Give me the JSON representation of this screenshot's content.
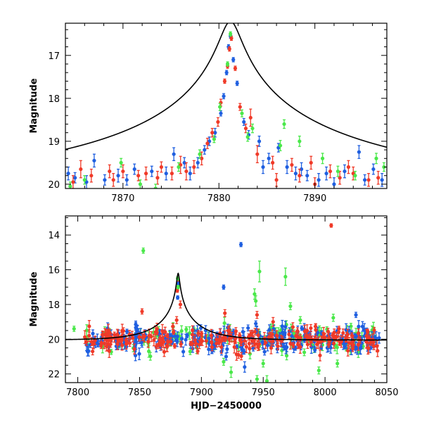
{
  "chart_data": [
    {
      "type": "scatter",
      "panel": "top",
      "xlabel": "",
      "ylabel": "Magnitude",
      "xlim": [
        7864,
        7897.5
      ],
      "ylim": [
        20.1,
        16.25
      ],
      "y_inverted": true,
      "x_ticks": [
        7870,
        7880,
        7890
      ],
      "y_ticks": [
        17,
        18,
        19,
        20
      ],
      "colors": {
        "red": "#f03a28",
        "blue": "#1f5fe0",
        "green": "#4ae84a",
        "model": "#000000"
      },
      "model_curve": {
        "baseline": 20.05,
        "peak": 16.5,
        "t0": 7881.2,
        "tE": 35.0,
        "u0": 0.029
      },
      "series": [
        {
          "color_key": "blue",
          "points": [
            [
              7864.3,
              19.75,
              0.15
            ],
            [
              7865.0,
              19.85,
              0.12
            ],
            [
              7866.2,
              19.95,
              0.15
            ],
            [
              7867.0,
              19.45,
              0.15
            ],
            [
              7868.1,
              19.9,
              0.12
            ],
            [
              7869.5,
              19.8,
              0.15
            ],
            [
              7870.4,
              19.9,
              0.12
            ],
            [
              7871.2,
              19.65,
              0.12
            ],
            [
              7873.0,
              19.7,
              0.12
            ],
            [
              7874.5,
              19.75,
              0.15
            ],
            [
              7875.3,
              19.3,
              0.15
            ],
            [
              7876.4,
              19.5,
              0.12
            ],
            [
              7877.0,
              19.75,
              0.15
            ],
            [
              7877.8,
              19.5,
              0.12
            ],
            [
              7878.5,
              19.2,
              0.1
            ],
            [
              7879.0,
              19.0,
              0.1
            ],
            [
              7879.6,
              18.8,
              0.1
            ],
            [
              7880.2,
              18.35,
              0.06
            ],
            [
              7880.5,
              17.95,
              0.06
            ],
            [
              7880.8,
              17.4,
              0.05
            ],
            [
              7881.0,
              16.8,
              0.05
            ],
            [
              7881.2,
              16.55,
              0.05
            ],
            [
              7881.5,
              17.1,
              0.05
            ],
            [
              7881.9,
              17.65,
              0.05
            ],
            [
              7882.6,
              18.55,
              0.08
            ],
            [
              7883.1,
              18.85,
              0.1
            ],
            [
              7884.2,
              19.0,
              0.12
            ],
            [
              7884.6,
              19.6,
              0.15
            ],
            [
              7885.2,
              19.4,
              0.12
            ],
            [
              7886.2,
              19.15,
              0.1
            ],
            [
              7887.1,
              19.6,
              0.15
            ],
            [
              7888.0,
              19.75,
              0.15
            ],
            [
              7888.6,
              19.65,
              0.15
            ],
            [
              7889.2,
              19.8,
              0.12
            ],
            [
              7890.4,
              19.9,
              0.15
            ],
            [
              7891.2,
              19.75,
              0.15
            ],
            [
              7892.0,
              20.0,
              0.15
            ],
            [
              7893.1,
              19.7,
              0.15
            ],
            [
              7894.6,
              19.25,
              0.15
            ],
            [
              7895.2,
              19.9,
              0.12
            ],
            [
              7896.1,
              19.65,
              0.12
            ],
            [
              7897.0,
              19.9,
              0.15
            ]
          ]
        },
        {
          "color_key": "red",
          "points": [
            [
              7864.8,
              19.95,
              0.15
            ],
            [
              7865.6,
              19.65,
              0.2
            ],
            [
              7866.7,
              19.8,
              0.15
            ],
            [
              7868.6,
              19.7,
              0.15
            ],
            [
              7869.0,
              19.9,
              0.15
            ],
            [
              7870.0,
              19.7,
              0.15
            ],
            [
              7871.6,
              19.8,
              0.12
            ],
            [
              7872.4,
              19.75,
              0.15
            ],
            [
              7873.6,
              19.85,
              0.15
            ],
            [
              7874.0,
              19.6,
              0.12
            ],
            [
              7875.1,
              19.75,
              0.15
            ],
            [
              7876.0,
              19.55,
              0.2
            ],
            [
              7876.6,
              19.7,
              0.2
            ],
            [
              7877.4,
              19.6,
              0.15
            ],
            [
              7878.2,
              19.4,
              0.15
            ],
            [
              7878.8,
              19.05,
              0.12
            ],
            [
              7879.3,
              18.8,
              0.1
            ],
            [
              7879.9,
              18.55,
              0.1
            ],
            [
              7880.2,
              18.1,
              0.08
            ],
            [
              7880.6,
              17.6,
              0.05
            ],
            [
              7880.9,
              17.25,
              0.05
            ],
            [
              7881.1,
              16.85,
              0.05
            ],
            [
              7881.3,
              16.6,
              0.05
            ],
            [
              7881.7,
              17.3,
              0.05
            ],
            [
              7882.2,
              18.2,
              0.08
            ],
            [
              7882.8,
              18.7,
              0.1
            ],
            [
              7883.3,
              18.45,
              0.2
            ],
            [
              7884.0,
              19.3,
              0.2
            ],
            [
              7885.6,
              19.5,
              0.15
            ],
            [
              7886.0,
              19.9,
              0.15
            ],
            [
              7887.6,
              19.55,
              0.15
            ],
            [
              7888.4,
              19.8,
              0.15
            ],
            [
              7889.6,
              19.5,
              0.15
            ],
            [
              7890.0,
              20.0,
              0.15
            ],
            [
              7891.6,
              19.7,
              0.15
            ],
            [
              7892.6,
              19.85,
              0.15
            ],
            [
              7893.5,
              19.6,
              0.15
            ],
            [
              7894.0,
              19.75,
              0.15
            ],
            [
              7895.6,
              19.9,
              0.15
            ],
            [
              7896.6,
              19.85,
              0.15
            ]
          ]
        },
        {
          "color_key": "green",
          "points": [
            [
              7864.5,
              20.05,
              0.1
            ],
            [
              7866.0,
              19.9,
              0.1
            ],
            [
              7869.8,
              19.5,
              0.1
            ],
            [
              7871.8,
              20.0,
              0.1
            ],
            [
              7873.4,
              20.1,
              0.1
            ],
            [
              7875.8,
              19.6,
              0.1
            ],
            [
              7878.0,
              19.3,
              0.1
            ],
            [
              7879.5,
              18.95,
              0.08
            ],
            [
              7880.1,
              18.2,
              0.08
            ],
            [
              7880.9,
              17.2,
              0.05
            ],
            [
              7881.2,
              16.5,
              0.05
            ],
            [
              7882.4,
              18.35,
              0.08
            ],
            [
              7883.0,
              18.9,
              0.1
            ],
            [
              7883.5,
              18.7,
              0.1
            ],
            [
              7886.4,
              19.1,
              0.12
            ],
            [
              7886.8,
              18.6,
              0.1
            ],
            [
              7888.4,
              19.0,
              0.12
            ],
            [
              7890.8,
              19.4,
              0.12
            ],
            [
              7892.4,
              19.7,
              0.12
            ],
            [
              7894.2,
              19.8,
              0.1
            ],
            [
              7896.4,
              19.4,
              0.12
            ],
            [
              7897.2,
              19.6,
              0.1
            ]
          ]
        }
      ]
    },
    {
      "type": "scatter",
      "panel": "bottom",
      "xlabel": "HJD−2450000",
      "ylabel": "Magnitude",
      "xlim": [
        7790,
        8050
      ],
      "ylim": [
        22.5,
        12.9
      ],
      "y_inverted": true,
      "x_ticks": [
        7800,
        7850,
        7900,
        7950,
        8000,
        8050
      ],
      "y_ticks": [
        14,
        16,
        18,
        20,
        22
      ],
      "colors": {
        "red": "#f03a28",
        "blue": "#1f5fe0",
        "green": "#4ae84a",
        "model": "#000000"
      },
      "model_curve": {
        "baseline": 20.05,
        "peak": 16.5,
        "t0": 7881.2,
        "tE": 35.0,
        "u0": 0.029
      },
      "dense_band": {
        "x_range": [
          7805,
          8045
        ],
        "center": 20.0,
        "scatter": 0.35,
        "points_per_series": [
          220,
          260,
          120
        ]
      },
      "series": [
        {
          "color_key": "red",
          "points": [
            [
              7852,
              18.4,
              0.15
            ],
            [
              7880.5,
              17.2,
              0.1
            ],
            [
              7881.2,
              16.6,
              0.1
            ],
            [
              7883,
              18.0,
              0.2
            ],
            [
              7919,
              18.5,
              0.2
            ],
            [
              7945,
              18.6,
              0.2
            ],
            [
              7958,
              19.0,
              0.25
            ],
            [
              7974,
              19.3,
              0.25
            ],
            [
              8005,
              13.45,
              0.1
            ],
            [
              7812,
              20.7,
              0.2
            ],
            [
              7880,
              18.9,
              0.2
            ],
            [
              7930,
              20.9,
              0.2
            ]
          ]
        },
        {
          "color_key": "blue",
          "points": [
            [
              7880.8,
              17.6,
              0.1
            ],
            [
              7881.3,
              16.8,
              0.1
            ],
            [
              7918,
              17.0,
              0.12
            ],
            [
              7932,
              14.55,
              0.12
            ],
            [
              7944,
              19.1,
              0.15
            ],
            [
              8025,
              18.6,
              0.15
            ],
            [
              7935,
              21.6,
              0.3
            ],
            [
              7920,
              21.0,
              0.2
            ]
          ]
        },
        {
          "color_key": "green",
          "points": [
            [
              7853,
              14.9,
              0.15
            ],
            [
              7880.8,
              16.5,
              0.1
            ],
            [
              7881.2,
              17.0,
              0.1
            ],
            [
              7944,
              17.8,
              0.3
            ],
            [
              7947,
              16.1,
              0.6
            ],
            [
              7943,
              17.4,
              0.3
            ],
            [
              7968,
              16.4,
              0.5
            ],
            [
              7972,
              18.1,
              0.2
            ],
            [
              7950,
              21.4,
              0.2
            ],
            [
              7945,
              22.3,
              0.2
            ],
            [
              7918,
              21.3,
              0.2
            ],
            [
              7953,
              22.4,
              0.3
            ],
            [
              7980,
              18.9,
              0.2
            ],
            [
              7924,
              21.9,
              0.3
            ],
            [
              8010,
              21.4,
              0.2
            ],
            [
              7995,
              21.8,
              0.2
            ],
            [
              7797,
              19.4,
              0.15
            ]
          ]
        }
      ]
    }
  ]
}
